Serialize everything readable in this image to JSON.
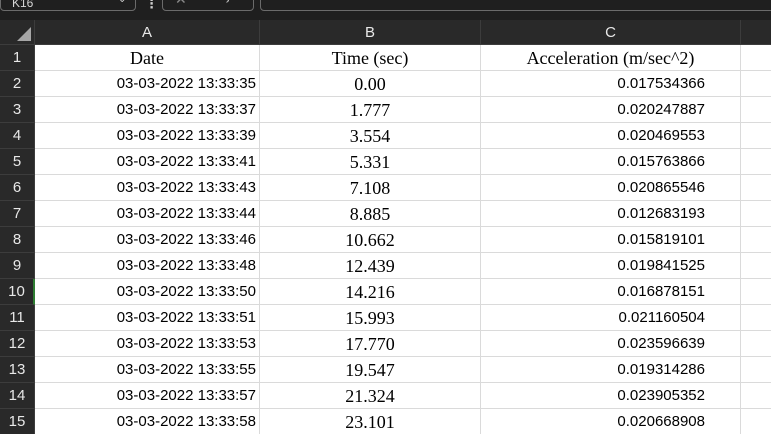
{
  "formula_bar": {
    "name_box": "K16",
    "fx_label": "fx"
  },
  "columns": [
    {
      "letter": "A"
    },
    {
      "letter": "B"
    },
    {
      "letter": "C"
    }
  ],
  "header_row": {
    "row_number": "1",
    "date": "Date",
    "time": "Time (sec)",
    "acceleration": "Acceleration (m/sec^2)"
  },
  "rows": [
    {
      "row_number": "2",
      "date": "03-03-2022 13:33:35",
      "time": "0.00",
      "acceleration": "0.017534366"
    },
    {
      "row_number": "3",
      "date": "03-03-2022 13:33:37",
      "time": "1.777",
      "acceleration": "0.020247887"
    },
    {
      "row_number": "4",
      "date": "03-03-2022 13:33:39",
      "time": "3.554",
      "acceleration": "0.020469553"
    },
    {
      "row_number": "5",
      "date": "03-03-2022 13:33:41",
      "time": "5.331",
      "acceleration": "0.015763866"
    },
    {
      "row_number": "6",
      "date": "03-03-2022 13:33:43",
      "time": "7.108",
      "acceleration": "0.020865546"
    },
    {
      "row_number": "7",
      "date": "03-03-2022 13:33:44",
      "time": "8.885",
      "acceleration": "0.012683193"
    },
    {
      "row_number": "8",
      "date": "03-03-2022 13:33:46",
      "time": "10.662",
      "acceleration": "0.015819101"
    },
    {
      "row_number": "9",
      "date": "03-03-2022 13:33:48",
      "time": "12.439",
      "acceleration": "0.019841525"
    },
    {
      "row_number": "10",
      "date": "03-03-2022 13:33:50",
      "time": "14.216",
      "acceleration": "0.016878151"
    },
    {
      "row_number": "11",
      "date": "03-03-2022 13:33:51",
      "time": "15.993",
      "acceleration": "0.021160504"
    },
    {
      "row_number": "12",
      "date": "03-03-2022 13:33:53",
      "time": "17.770",
      "acceleration": "0.023596639"
    },
    {
      "row_number": "13",
      "date": "03-03-2022 13:33:55",
      "time": "19.547",
      "acceleration": "0.019314286"
    },
    {
      "row_number": "14",
      "date": "03-03-2022 13:33:57",
      "time": "21.324",
      "acceleration": "0.023905352"
    },
    {
      "row_number": "15",
      "date": "03-03-2022 13:33:58",
      "time": "23.101",
      "acceleration": "0.020668908"
    }
  ],
  "active_row": "10",
  "colors": {
    "header_bg": "#292929",
    "grid_line": "#dadada",
    "active_indicator": "#2e7d32"
  }
}
